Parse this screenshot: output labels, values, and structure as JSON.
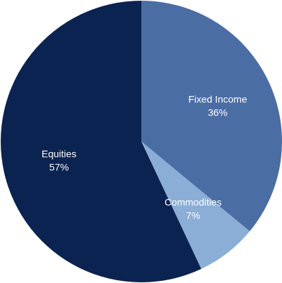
{
  "chart_data": {
    "type": "pie",
    "title": "",
    "start": "12 o'clock",
    "direction": "clockwise",
    "slices": [
      {
        "label": "Fixed Income",
        "value": 36,
        "value_label": "36%",
        "color": "#4a6da4"
      },
      {
        "label": "Commodities",
        "value": 7,
        "value_label": "7%",
        "color": "#8aaed6"
      },
      {
        "label": "Equities",
        "value": 57,
        "value_label": "57%",
        "color": "#0b2350"
      }
    ]
  }
}
